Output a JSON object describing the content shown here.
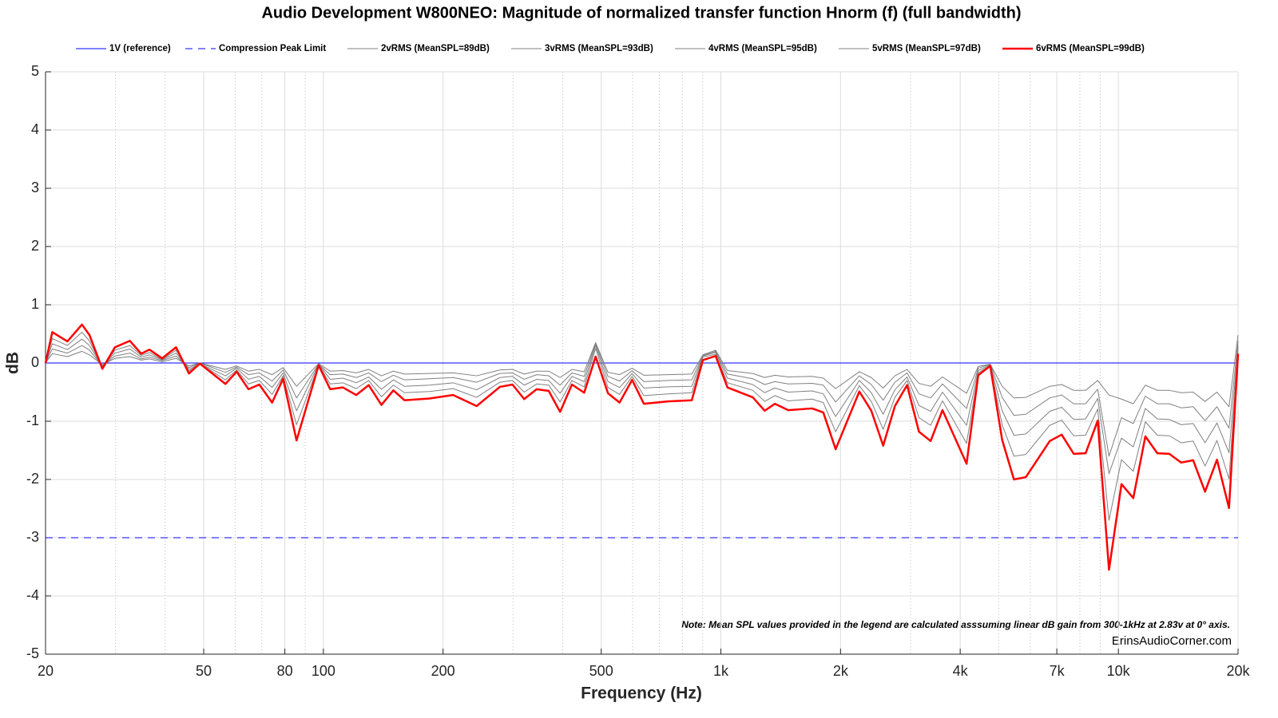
{
  "chart_data": {
    "type": "line",
    "title": "Audio Development W800NEO: Magnitude of normalized transfer function Hnorm (f) (full bandwidth)",
    "xlabel": "Frequency (Hz)",
    "ylabel": "dB",
    "xscale": "log",
    "xlim": [
      20,
      20000
    ],
    "ylim": [
      -5,
      5
    ],
    "yticks": [
      -5,
      -4,
      -3,
      -2,
      -1,
      0,
      1,
      2,
      3,
      4,
      5
    ],
    "xticks": [
      20,
      50,
      80,
      100,
      200,
      500,
      {
        "value": 1000,
        "label": "1k"
      },
      {
        "value": 2000,
        "label": "2k"
      },
      {
        "value": 4000,
        "label": "4k"
      },
      {
        "value": 7000,
        "label": "7k"
      },
      {
        "value": 10000,
        "label": "10k"
      },
      {
        "value": 20000,
        "label": "20k"
      }
    ],
    "xminorticks": [
      30,
      40,
      60,
      70,
      90,
      300,
      400,
      600,
      700,
      800,
      900,
      3000,
      5000,
      6000,
      8000,
      9000
    ],
    "grid": true,
    "legend": "top",
    "annotations": [
      "Note: Mean SPL values provided in the legend are calculated asssuming linear dB gain from 300-1kHz at 2.83v at 0° axis.",
      "ErinsAudioCorner.com"
    ],
    "x": [
      20,
      20.8,
      22.7,
      24.7,
      25.8,
      27.8,
      29.9,
      32.6,
      34.8,
      36.5,
      39.3,
      42.6,
      45.9,
      48.9,
      56.7,
      60.5,
      64.8,
      69,
      74.3,
      79.2,
      85.6,
      97.3,
      104,
      112,
      121,
      130,
      140,
      150,
      160,
      185,
      212,
      243,
      278,
      299,
      320,
      344,
      369,
      394,
      422,
      453,
      484,
      520,
      556,
      598,
      640,
      737,
      845,
      901,
      970,
      1039,
      1203,
      1289,
      1367,
      1477,
      1696,
      1810,
      1944,
      2230,
      2390,
      2560,
      2740,
      2940,
      3150,
      3370,
      3610,
      4150,
      4440,
      4760,
      5100,
      5460,
      5850,
      6720,
      7200,
      7720,
      8270,
      8870,
      9470,
      10180,
      10900,
      11690,
      12530,
      13430,
      14390,
      15420,
      16520,
      17700,
      18980,
      20000
    ],
    "series": [
      {
        "name": "1V (reference)",
        "color": "#0000ff",
        "width": 1,
        "dash": false,
        "x": [
          20,
          20000
        ],
        "values": [
          0,
          0
        ]
      },
      {
        "name": "Compression Peak Limit",
        "color": "#0000ff",
        "width": 1,
        "dash": true,
        "x": [
          20,
          20000
        ],
        "values": [
          -3,
          -3
        ]
      },
      {
        "name": "2vRMS (MeanSPL=89dB)",
        "color": "#808080",
        "width": 1,
        "dash": false,
        "values": [
          0,
          0.16,
          0.11,
          0.2,
          0.14,
          -0.03,
          0.08,
          0.11,
          0.05,
          0.07,
          0.02,
          0.08,
          -0.05,
          0,
          -0.11,
          -0.05,
          -0.14,
          -0.11,
          -0.2,
          -0.08,
          -0.4,
          -0.01,
          -0.14,
          -0.13,
          -0.17,
          -0.11,
          -0.22,
          -0.14,
          -0.19,
          -0.18,
          -0.17,
          -0.22,
          -0.12,
          -0.11,
          -0.19,
          -0.14,
          -0.14,
          -0.25,
          -0.11,
          -0.15,
          0.35,
          -0.16,
          -0.2,
          -0.09,
          -0.21,
          -0.2,
          -0.19,
          0.14,
          0.22,
          -0.13,
          -0.18,
          -0.25,
          -0.21,
          -0.24,
          -0.23,
          -0.26,
          -0.44,
          -0.15,
          -0.25,
          -0.43,
          -0.22,
          -0.11,
          -0.35,
          -0.4,
          -0.24,
          -0.52,
          -0.06,
          -0.02,
          -0.4,
          -0.6,
          -0.59,
          -0.4,
          -0.37,
          -0.47,
          -0.47,
          -0.3,
          -0.55,
          -0.62,
          -0.7,
          -0.38,
          -0.47,
          -0.47,
          -0.51,
          -0.5,
          -0.66,
          -0.5,
          -0.75,
          0.48
        ]
      },
      {
        "name": "3vRMS (MeanSPL=93dB)",
        "color": "#808080",
        "width": 1,
        "dash": false,
        "values": [
          0,
          0.24,
          0.17,
          0.3,
          0.22,
          -0.05,
          0.12,
          0.17,
          0.07,
          0.1,
          0.04,
          0.12,
          -0.08,
          0,
          -0.16,
          -0.07,
          -0.2,
          -0.17,
          -0.31,
          -0.12,
          -0.6,
          -0.02,
          -0.2,
          -0.19,
          -0.25,
          -0.17,
          -0.32,
          -0.21,
          -0.29,
          -0.27,
          -0.25,
          -0.33,
          -0.18,
          -0.17,
          -0.28,
          -0.2,
          -0.22,
          -0.38,
          -0.17,
          -0.23,
          0.33,
          -0.23,
          -0.31,
          -0.13,
          -0.32,
          -0.3,
          -0.29,
          0.13,
          0.2,
          -0.19,
          -0.27,
          -0.37,
          -0.32,
          -0.36,
          -0.35,
          -0.38,
          -0.67,
          -0.22,
          -0.37,
          -0.64,
          -0.33,
          -0.17,
          -0.53,
          -0.6,
          -0.36,
          -0.78,
          -0.09,
          -0.02,
          -0.59,
          -0.9,
          -0.88,
          -0.6,
          -0.55,
          -0.7,
          -0.7,
          -0.45,
          -1.6,
          -0.94,
          -1.04,
          -0.57,
          -0.7,
          -0.7,
          -0.77,
          -0.75,
          -0.99,
          -0.75,
          -1.12,
          0.38
        ]
      },
      {
        "name": "4vRMS (MeanSPL=95dB)",
        "color": "#808080",
        "width": 1,
        "dash": false,
        "values": [
          0,
          0.33,
          0.23,
          0.41,
          0.3,
          -0.06,
          0.17,
          0.24,
          0.1,
          0.14,
          0.05,
          0.17,
          -0.11,
          -0.01,
          -0.22,
          -0.09,
          -0.28,
          -0.23,
          -0.42,
          -0.17,
          -0.82,
          -0.02,
          -0.28,
          -0.26,
          -0.34,
          -0.24,
          -0.45,
          -0.29,
          -0.4,
          -0.38,
          -0.34,
          -0.46,
          -0.25,
          -0.23,
          -0.38,
          -0.28,
          -0.3,
          -0.52,
          -0.23,
          -0.32,
          0.3,
          -0.32,
          -0.42,
          -0.18,
          -0.43,
          -0.41,
          -0.4,
          0.12,
          0.18,
          -0.26,
          -0.37,
          -0.51,
          -0.43,
          -0.5,
          -0.48,
          -0.53,
          -0.92,
          -0.3,
          -0.51,
          -0.88,
          -0.46,
          -0.24,
          -0.73,
          -0.83,
          -0.5,
          -1.07,
          -0.13,
          -0.03,
          -0.82,
          -1.24,
          -1.22,
          -0.83,
          -0.76,
          -0.97,
          -0.96,
          -0.61,
          -1.9,
          -1.29,
          -1.44,
          -0.78,
          -0.96,
          -0.97,
          -1.06,
          -1.04,
          -1.37,
          -1.03,
          -1.54,
          0.3
        ]
      },
      {
        "name": "5vRMS (MeanSPL=97dB)",
        "color": "#808080",
        "width": 1,
        "dash": false,
        "values": [
          0,
          0.42,
          0.3,
          0.53,
          0.38,
          -0.08,
          0.22,
          0.3,
          0.13,
          0.18,
          0.06,
          0.22,
          -0.14,
          -0.01,
          -0.29,
          -0.12,
          -0.36,
          -0.3,
          -0.54,
          -0.22,
          -1.06,
          -0.03,
          -0.36,
          -0.34,
          -0.44,
          -0.3,
          -0.58,
          -0.38,
          -0.51,
          -0.49,
          -0.44,
          -0.59,
          -0.33,
          -0.3,
          -0.5,
          -0.36,
          -0.38,
          -0.67,
          -0.3,
          -0.41,
          0.25,
          -0.42,
          -0.54,
          -0.23,
          -0.56,
          -0.53,
          -0.51,
          0.1,
          0.15,
          -0.34,
          -0.47,
          -0.66,
          -0.56,
          -0.65,
          -0.62,
          -0.68,
          -1.18,
          -0.39,
          -0.66,
          -1.14,
          -0.59,
          -0.3,
          -0.94,
          -1.07,
          -0.65,
          -1.38,
          -0.17,
          -0.04,
          -1.06,
          -1.6,
          -1.57,
          -1.07,
          -0.98,
          -1.25,
          -1.24,
          -0.79,
          -2.7,
          -1.66,
          -1.86,
          -1.01,
          -1.24,
          -1.25,
          -1.37,
          -1.34,
          -1.77,
          -1.33,
          -1.99,
          0.25
        ]
      },
      {
        "name": "6vRMS (MeanSPL=99dB)",
        "color": "#ff0000",
        "width": 2.5,
        "dash": false,
        "values": [
          0,
          0.53,
          0.37,
          0.66,
          0.48,
          -0.1,
          0.27,
          0.38,
          0.16,
          0.23,
          0.08,
          0.27,
          -0.18,
          -0.01,
          -0.36,
          -0.15,
          -0.45,
          -0.37,
          -0.68,
          -0.27,
          -1.33,
          -0.04,
          -0.45,
          -0.42,
          -0.55,
          -0.38,
          -0.72,
          -0.47,
          -0.64,
          -0.61,
          -0.55,
          -0.74,
          -0.41,
          -0.37,
          -0.62,
          -0.45,
          -0.48,
          -0.84,
          -0.37,
          -0.51,
          0.11,
          -0.52,
          -0.68,
          -0.29,
          -0.7,
          -0.66,
          -0.64,
          0.05,
          0.12,
          -0.42,
          -0.59,
          -0.82,
          -0.7,
          -0.81,
          -0.78,
          -0.85,
          -1.48,
          -0.49,
          -0.82,
          -1.42,
          -0.74,
          -0.38,
          -1.18,
          -1.34,
          -0.81,
          -1.73,
          -0.21,
          -0.05,
          -1.32,
          -2.0,
          -1.96,
          -1.34,
          -1.23,
          -1.56,
          -1.55,
          -0.99,
          -3.55,
          -2.08,
          -2.32,
          -1.26,
          -1.55,
          -1.56,
          -1.71,
          -1.67,
          -2.21,
          -1.66,
          -2.49,
          0.16
        ]
      }
    ]
  }
}
